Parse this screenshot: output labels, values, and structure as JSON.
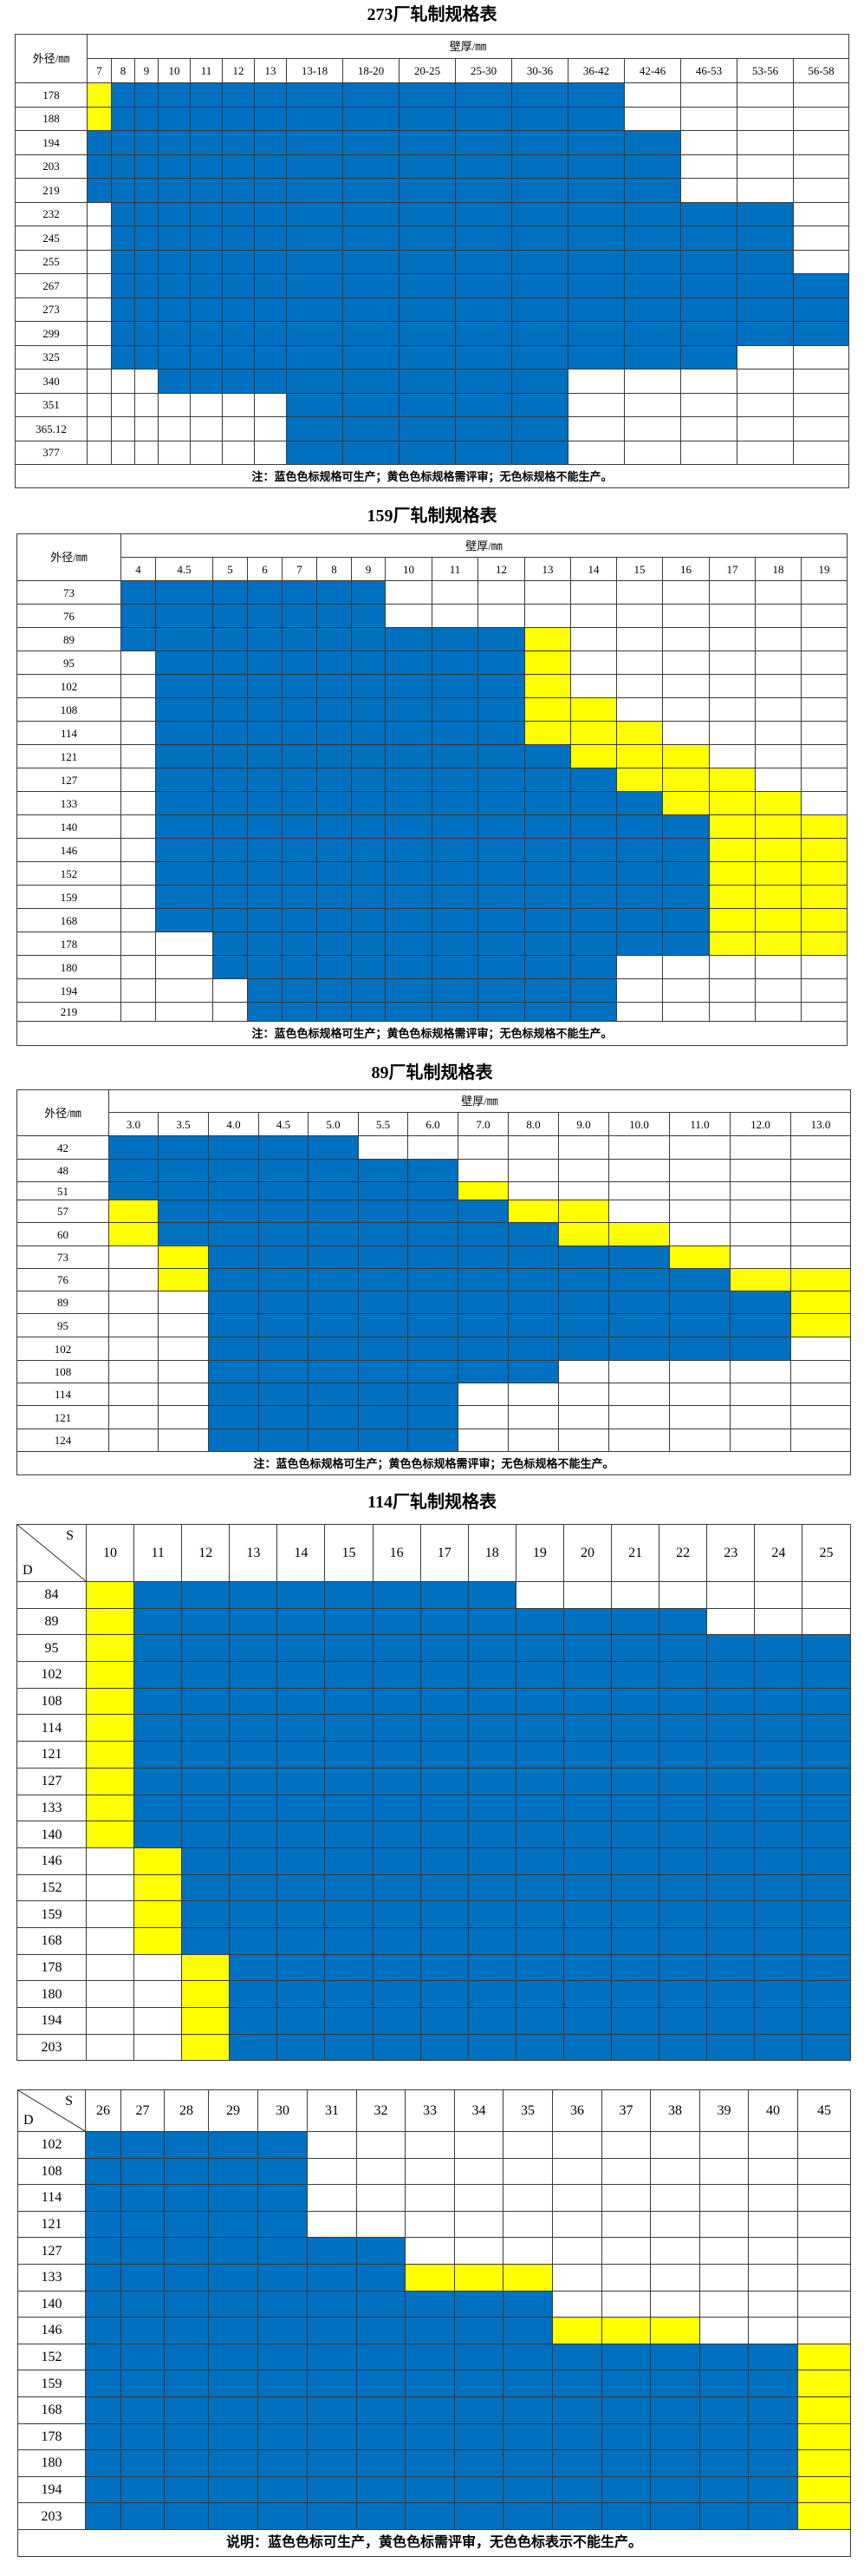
{
  "legend_colors": {
    "B": "#0070C0",
    "Y": "#FFFF00",
    "W": "#FFFFFF"
  },
  "legend_meaning": {
    "B": "可生产",
    "Y": "需评审",
    "W": "不能生产"
  },
  "tables": [
    {
      "title": "273厂轧制规格表",
      "row_header": "外径/㎜",
      "col_header": "壁厚/㎜",
      "columns": [
        "7",
        "8",
        "9",
        "10",
        "11",
        "12",
        "13",
        "13-18",
        "18-20",
        "20-25",
        "25-30",
        "30-36",
        "36-42",
        "42-46",
        "46-53",
        "53-56",
        "56-58"
      ],
      "rows": [
        {
          "label": "178",
          "cells": "Y1 B12 W4"
        },
        {
          "label": "188",
          "cells": "Y1 B12 W4"
        },
        {
          "label": "194",
          "cells": "B14 W3"
        },
        {
          "label": "203",
          "cells": "B14 W3"
        },
        {
          "label": "219",
          "cells": "B14 W3"
        },
        {
          "label": "232",
          "cells": "W1 B15 W1"
        },
        {
          "label": "245",
          "cells": "W1 B15 W1"
        },
        {
          "label": "255",
          "cells": "W1 B15 W1"
        },
        {
          "label": "267",
          "cells": "W1 B16"
        },
        {
          "label": "273",
          "cells": "W1 B16"
        },
        {
          "label": "299",
          "cells": "W1 B16"
        },
        {
          "label": "325",
          "cells": "W1 B14 W2"
        },
        {
          "label": "340",
          "cells": "W3 B9 W5"
        },
        {
          "label": "351",
          "cells": "W7 B5 W5"
        },
        {
          "label": "365.12",
          "cells": "W7 B5 W5"
        },
        {
          "label": "377",
          "cells": "W7 B5 W5"
        }
      ],
      "footer": "注：蓝色色标规格可生产；黄色色标规格需评审；无色标规格不能生产。"
    },
    {
      "title": "159厂轧制规格表",
      "row_header": "外径/㎜",
      "col_header": "壁厚/㎜",
      "columns": [
        "4",
        "4.5",
        "5",
        "6",
        "7",
        "8",
        "9",
        "10",
        "11",
        "12",
        "13",
        "14",
        "15",
        "16",
        "17",
        "18",
        "19"
      ],
      "rows": [
        {
          "label": "73",
          "cells": "B7 W10"
        },
        {
          "label": "76",
          "cells": "B7 W10"
        },
        {
          "label": "89",
          "cells": "B10 Y1 W6"
        },
        {
          "label": "95",
          "cells": "W1 B9 Y1 W6"
        },
        {
          "label": "102",
          "cells": "W1 B9 Y1 W6"
        },
        {
          "label": "108",
          "cells": "W1 B9 Y2 W5"
        },
        {
          "label": "114",
          "cells": "W1 B9 Y3 W4"
        },
        {
          "label": "121",
          "cells": "W1 B10 Y3 W3"
        },
        {
          "label": "127",
          "cells": "W1 B11 Y3 W2"
        },
        {
          "label": "133",
          "cells": "W1 B12 Y3 W1"
        },
        {
          "label": "140",
          "cells": "W1 B13 Y3"
        },
        {
          "label": "146",
          "cells": "W1 B13 Y3"
        },
        {
          "label": "152",
          "cells": "W1 B13 Y3"
        },
        {
          "label": "159",
          "cells": "W1 B13 Y3"
        },
        {
          "label": "168",
          "cells": "W1 B13 Y3"
        },
        {
          "label": "178",
          "cells": "W2 B12 Y3"
        },
        {
          "label": "180",
          "cells": "W2 B10 W5"
        },
        {
          "label": "194",
          "cells": "W3 B9 W5"
        },
        {
          "label": "219",
          "cells": "W3 B9 W5"
        }
      ],
      "footer": "注：蓝色色标规格可生产；黄色色标规格需评审；无色标规格不能生产。"
    },
    {
      "title": "89厂轧制规格表",
      "row_header": "外径/㎜",
      "col_header": "壁厚/㎜",
      "columns": [
        "3.0",
        "3.5",
        "4.0",
        "4.5",
        "5.0",
        "5.5",
        "6.0",
        "7.0",
        "8.0",
        "9.0",
        "10.0",
        "11.0",
        "12.0",
        "13.0"
      ],
      "rows": [
        {
          "label": "42",
          "cells": "B5 W9"
        },
        {
          "label": "48",
          "cells": "B7 W7"
        },
        {
          "label": "51",
          "cells": "B7 Y1 W6"
        },
        {
          "label": "57",
          "cells": "Y1 B7 Y2 W4"
        },
        {
          "label": "60",
          "cells": "Y1 B8 Y2 W3"
        },
        {
          "label": "73",
          "cells": "W1 Y1 B9 Y1 W2"
        },
        {
          "label": "76",
          "cells": "W1 Y1 B10 Y2"
        },
        {
          "label": "89",
          "cells": "W2 B11 Y1"
        },
        {
          "label": "95",
          "cells": "W2 B11 Y1"
        },
        {
          "label": "102",
          "cells": "W2 B11 W1"
        },
        {
          "label": "108",
          "cells": "W2 B7 W5"
        },
        {
          "label": "114",
          "cells": "W2 B5 W7"
        },
        {
          "label": "121",
          "cells": "W2 B5 W7"
        },
        {
          "label": "124",
          "cells": "W2 B5 W7"
        }
      ],
      "footer": "注：蓝色色标规格可生产；黄色色标规格需评审；无色标规格不能生产。"
    },
    {
      "title": "114厂轧制规格表",
      "corner_s": "S",
      "corner_d": "D",
      "columns": [
        "10",
        "11",
        "12",
        "13",
        "14",
        "15",
        "16",
        "17",
        "18",
        "19",
        "20",
        "21",
        "22",
        "23",
        "24",
        "25"
      ],
      "rows": [
        {
          "label": "84",
          "cells": "Y1 B8 W7"
        },
        {
          "label": "89",
          "cells": "Y1 B12 W3"
        },
        {
          "label": "95",
          "cells": "Y1 B15"
        },
        {
          "label": "102",
          "cells": "Y1 B15"
        },
        {
          "label": "108",
          "cells": "Y1 B15"
        },
        {
          "label": "114",
          "cells": "Y1 B15"
        },
        {
          "label": "121",
          "cells": "Y1 B15"
        },
        {
          "label": "127",
          "cells": "Y1 B15"
        },
        {
          "label": "133",
          "cells": "Y1 B15"
        },
        {
          "label": "140",
          "cells": "Y1 B15"
        },
        {
          "label": "146",
          "cells": "W1 Y1 B14"
        },
        {
          "label": "152",
          "cells": "W1 Y1 B14"
        },
        {
          "label": "159",
          "cells": "W1 Y1 B14"
        },
        {
          "label": "168",
          "cells": "W1 Y1 B14"
        },
        {
          "label": "178",
          "cells": "W2 Y1 B13"
        },
        {
          "label": "180",
          "cells": "W2 Y1 B13"
        },
        {
          "label": "194",
          "cells": "W2 Y1 B13"
        },
        {
          "label": "203",
          "cells": "W2 Y1 B13"
        }
      ]
    },
    {
      "corner_s": "S",
      "corner_d": "D",
      "columns": [
        "26",
        "27",
        "28",
        "29",
        "30",
        "31",
        "32",
        "33",
        "34",
        "35",
        "36",
        "37",
        "38",
        "39",
        "40",
        "45"
      ],
      "rows": [
        {
          "label": "102",
          "cells": "B5 W11"
        },
        {
          "label": "108",
          "cells": "B5 W11"
        },
        {
          "label": "114",
          "cells": "B5 W11"
        },
        {
          "label": "121",
          "cells": "B5 W11"
        },
        {
          "label": "127",
          "cells": "B7 W9"
        },
        {
          "label": "133",
          "cells": "B7 Y3 W6"
        },
        {
          "label": "140",
          "cells": "B10 W6"
        },
        {
          "label": "146",
          "cells": "B10 Y3 W3"
        },
        {
          "label": "152",
          "cells": "B15 Y1"
        },
        {
          "label": "159",
          "cells": "B15 Y1"
        },
        {
          "label": "168",
          "cells": "B15 Y1"
        },
        {
          "label": "178",
          "cells": "B15 Y1"
        },
        {
          "label": "180",
          "cells": "B15 Y1"
        },
        {
          "label": "194",
          "cells": "B15 Y1"
        },
        {
          "label": "203",
          "cells": "B15 Y1"
        }
      ],
      "footer": "说明：蓝色色标可生产，黄色色标需评审，无色色标表示不能生产。"
    }
  ]
}
